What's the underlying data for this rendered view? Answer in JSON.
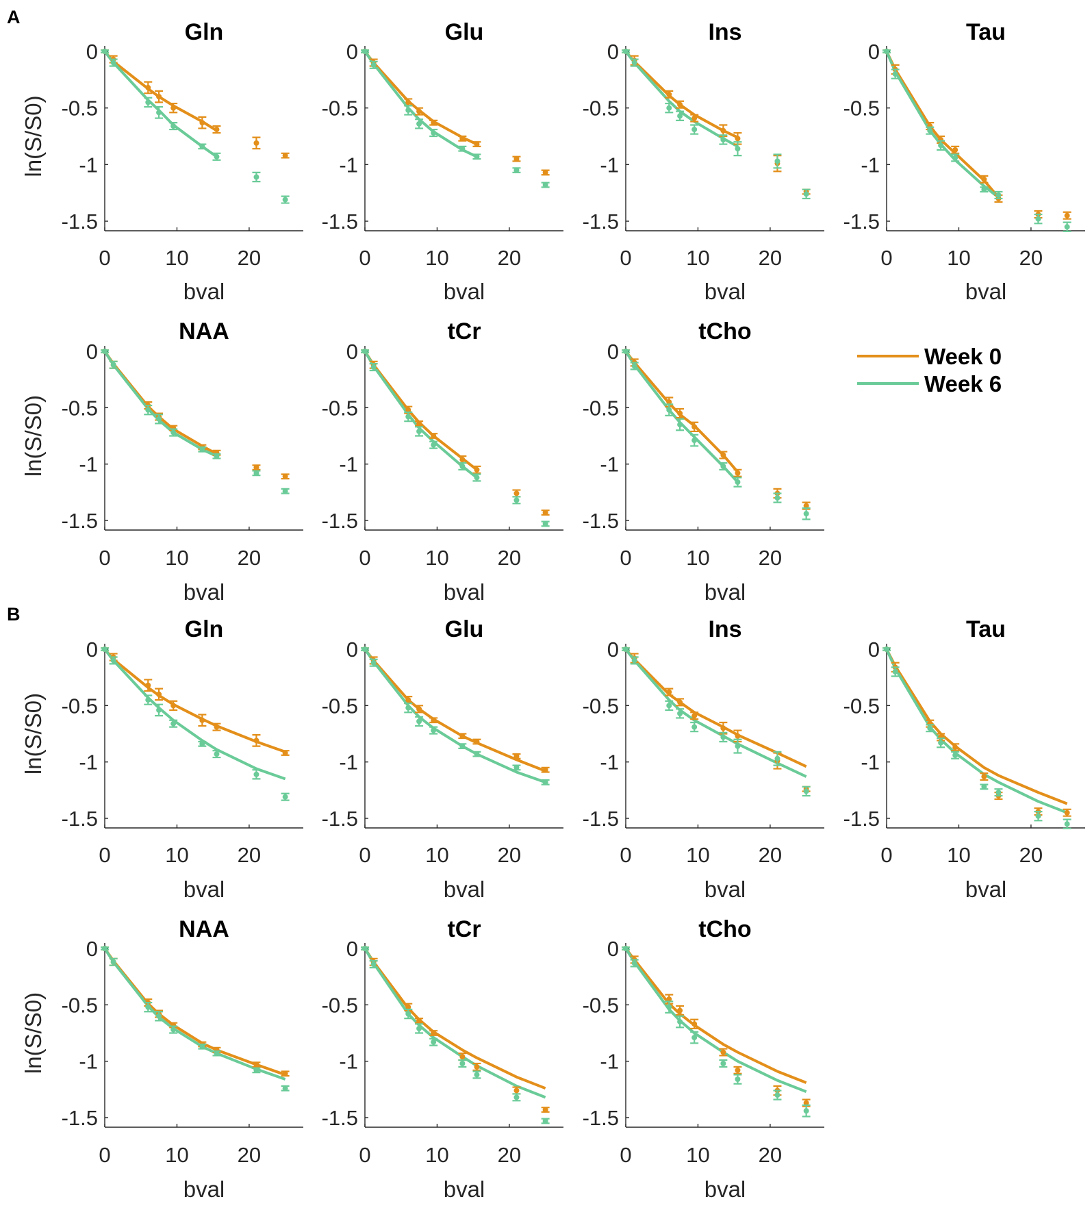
{
  "figure": {
    "section_labels": [
      "A",
      "B"
    ],
    "legend": {
      "entries": [
        {
          "label": "Week 0",
          "color": "#E38F1A"
        },
        {
          "label": "Week 6",
          "color": "#6ACB98"
        }
      ]
    }
  },
  "chart_data": {
    "type": "line",
    "xlabel": "bval",
    "ylabel": "ln(S/S0)",
    "xlim": [
      0,
      27.5
    ],
    "ylim": [
      -1.6,
      0.05
    ],
    "x_ticks": [
      0,
      10,
      20
    ],
    "y_ticks": [
      0,
      -0.5,
      -1,
      -1.5
    ],
    "y_tick_labels": [
      "0",
      "-0.5",
      "-1",
      "-1.5"
    ],
    "b_values": [
      0,
      1.2,
      6,
      7.5,
      9.5,
      13.5,
      15.5,
      21,
      25
    ],
    "series_names": [
      "Week 0",
      "Week 6"
    ],
    "metabolites": [
      {
        "name": "Gln",
        "week0": [
          0,
          -0.07,
          -0.32,
          -0.4,
          -0.5,
          -0.63,
          -0.69,
          -0.81,
          -0.92
        ],
        "week0_err": [
          0.01,
          0.03,
          0.05,
          0.05,
          0.04,
          0.05,
          0.03,
          0.05,
          0.02
        ],
        "week6": [
          0,
          -0.1,
          -0.45,
          -0.54,
          -0.66,
          -0.84,
          -0.93,
          -1.11,
          -1.31
        ],
        "week6_err": [
          0.01,
          0.03,
          0.04,
          0.05,
          0.03,
          0.02,
          0.03,
          0.04,
          0.03
        ],
        "fitA_week0": [
          0,
          -0.09,
          -0.33,
          -0.4,
          -0.48,
          -0.62,
          -0.7
        ],
        "fitA_week6": [
          0,
          -0.1,
          -0.43,
          -0.52,
          -0.65,
          -0.84,
          -0.93
        ],
        "fitB_week0": [
          0,
          -0.09,
          -0.34,
          -0.41,
          -0.49,
          -0.62,
          -0.68,
          -0.82,
          -0.91
        ],
        "fitB_week6": [
          0,
          -0.1,
          -0.43,
          -0.52,
          -0.63,
          -0.81,
          -0.89,
          -1.06,
          -1.15
        ]
      },
      {
        "name": "Glu",
        "week0": [
          0,
          -0.1,
          -0.45,
          -0.53,
          -0.63,
          -0.77,
          -0.82,
          -0.95,
          -1.07
        ],
        "week0_err": [
          0.01,
          0.03,
          0.03,
          0.03,
          0.02,
          0.02,
          0.02,
          0.02,
          0.02
        ],
        "week6": [
          0,
          -0.12,
          -0.52,
          -0.64,
          -0.72,
          -0.86,
          -0.93,
          -1.05,
          -1.18
        ],
        "week6_err": [
          0.01,
          0.03,
          0.04,
          0.04,
          0.03,
          0.02,
          0.02,
          0.02,
          0.02
        ],
        "fitA_week0": [
          0,
          -0.1,
          -0.44,
          -0.52,
          -0.62,
          -0.76,
          -0.82
        ],
        "fitA_week6": [
          0,
          -0.11,
          -0.5,
          -0.6,
          -0.71,
          -0.87,
          -0.93
        ],
        "fitB_week0": [
          0,
          -0.1,
          -0.45,
          -0.53,
          -0.62,
          -0.77,
          -0.83,
          -0.98,
          -1.08
        ],
        "fitB_week6": [
          0,
          -0.11,
          -0.5,
          -0.6,
          -0.7,
          -0.86,
          -0.93,
          -1.09,
          -1.18
        ]
      },
      {
        "name": "Ins",
        "week0": [
          0,
          -0.08,
          -0.38,
          -0.47,
          -0.59,
          -0.7,
          -0.77,
          -0.99,
          -1.24
        ],
        "week0_err": [
          0.01,
          0.04,
          0.03,
          0.03,
          0.03,
          0.05,
          0.05,
          0.07,
          0.02
        ],
        "week6": [
          0,
          -0.1,
          -0.5,
          -0.57,
          -0.69,
          -0.78,
          -0.86,
          -0.97,
          -1.26
        ],
        "week6_err": [
          0.01,
          0.03,
          0.04,
          0.04,
          0.04,
          0.04,
          0.06,
          0.06,
          0.04
        ],
        "fitA_week0": [
          0,
          -0.09,
          -0.39,
          -0.47,
          -0.56,
          -0.7,
          -0.76
        ],
        "fitA_week6": [
          0,
          -0.1,
          -0.44,
          -0.53,
          -0.62,
          -0.77,
          -0.84
        ],
        "fitB_week0": [
          0,
          -0.09,
          -0.4,
          -0.47,
          -0.56,
          -0.69,
          -0.76,
          -0.92,
          -1.04
        ],
        "fitB_week6": [
          0,
          -0.1,
          -0.45,
          -0.54,
          -0.63,
          -0.77,
          -0.84,
          -1.01,
          -1.13
        ]
      },
      {
        "name": "Tau",
        "week0": [
          0,
          -0.16,
          -0.66,
          -0.78,
          -0.87,
          -1.13,
          -1.3,
          -1.44,
          -1.45
        ],
        "week0_err": [
          0.01,
          0.04,
          0.03,
          0.03,
          0.03,
          0.03,
          0.03,
          0.03,
          0.03
        ],
        "week6": [
          0,
          -0.2,
          -0.7,
          -0.83,
          -0.94,
          -1.22,
          -1.27,
          -1.48,
          -1.55
        ],
        "week6_err": [
          0.01,
          0.04,
          0.03,
          0.04,
          0.03,
          0.02,
          0.03,
          0.04,
          0.04
        ],
        "fitA_week0": [
          0,
          -0.16,
          -0.66,
          -0.78,
          -0.9,
          -1.14,
          -1.29
        ],
        "fitA_week6": [
          0,
          -0.18,
          -0.7,
          -0.82,
          -0.96,
          -1.19,
          -1.29
        ],
        "fitB_week0": [
          0,
          -0.15,
          -0.64,
          -0.75,
          -0.86,
          -1.05,
          -1.12,
          -1.27,
          -1.37
        ],
        "fitB_week6": [
          0,
          -0.17,
          -0.69,
          -0.8,
          -0.92,
          -1.11,
          -1.18,
          -1.35,
          -1.45
        ]
      },
      {
        "name": "NAA",
        "week0": [
          0,
          -0.12,
          -0.48,
          -0.58,
          -0.68,
          -0.85,
          -0.9,
          -1.03,
          -1.11
        ],
        "week0_err": [
          0.01,
          0.03,
          0.03,
          0.03,
          0.02,
          0.02,
          0.02,
          0.02,
          0.02
        ],
        "week6": [
          0,
          -0.12,
          -0.52,
          -0.6,
          -0.72,
          -0.87,
          -0.93,
          -1.08,
          -1.24
        ],
        "week6_err": [
          0.01,
          0.03,
          0.04,
          0.04,
          0.03,
          0.02,
          0.02,
          0.02,
          0.02
        ],
        "fitA_week0": [
          0,
          -0.11,
          -0.49,
          -0.58,
          -0.69,
          -0.84,
          -0.91
        ],
        "fitA_week6": [
          0,
          -0.12,
          -0.51,
          -0.61,
          -0.72,
          -0.87,
          -0.93
        ],
        "fitB_week0": [
          0,
          -0.11,
          -0.49,
          -0.58,
          -0.68,
          -0.84,
          -0.9,
          -1.03,
          -1.12
        ],
        "fitB_week6": [
          0,
          -0.12,
          -0.51,
          -0.61,
          -0.71,
          -0.87,
          -0.93,
          -1.07,
          -1.16
        ]
      },
      {
        "name": "tCr",
        "week0": [
          0,
          -0.12,
          -0.52,
          -0.64,
          -0.75,
          -0.96,
          -1.05,
          -1.26,
          -1.43
        ],
        "week0_err": [
          0.01,
          0.03,
          0.03,
          0.02,
          0.02,
          0.03,
          0.03,
          0.03,
          0.02
        ],
        "week6": [
          0,
          -0.14,
          -0.58,
          -0.71,
          -0.83,
          -1.02,
          -1.12,
          -1.32,
          -1.53
        ],
        "week6_err": [
          0.01,
          0.03,
          0.04,
          0.04,
          0.03,
          0.03,
          0.03,
          0.03,
          0.02
        ],
        "fitA_week0": [
          0,
          -0.12,
          -0.52,
          -0.63,
          -0.75,
          -0.95,
          -1.05
        ],
        "fitA_week6": [
          0,
          -0.13,
          -0.56,
          -0.68,
          -0.8,
          -1.02,
          -1.12
        ],
        "fitB_week0": [
          0,
          -0.12,
          -0.53,
          -0.63,
          -0.74,
          -0.9,
          -0.97,
          -1.14,
          -1.24
        ],
        "fitB_week6": [
          0,
          -0.13,
          -0.58,
          -0.68,
          -0.79,
          -0.96,
          -1.04,
          -1.22,
          -1.32
        ]
      },
      {
        "name": "tCho",
        "week0": [
          0,
          -0.1,
          -0.45,
          -0.55,
          -0.67,
          -0.92,
          -1.08,
          -1.26,
          -1.37
        ],
        "week0_err": [
          0.01,
          0.03,
          0.04,
          0.04,
          0.04,
          0.03,
          0.03,
          0.04,
          0.03
        ],
        "week6": [
          0,
          -0.13,
          -0.52,
          -0.65,
          -0.79,
          -1.02,
          -1.16,
          -1.3,
          -1.44
        ],
        "week6_err": [
          0.01,
          0.03,
          0.05,
          0.05,
          0.05,
          0.03,
          0.04,
          0.04,
          0.05
        ],
        "fitA_week0": [
          0,
          -0.1,
          -0.46,
          -0.56,
          -0.66,
          -0.92,
          -1.07
        ],
        "fitA_week6": [
          0,
          -0.12,
          -0.52,
          -0.63,
          -0.76,
          -1.02,
          -1.16
        ],
        "fitB_week0": [
          0,
          -0.1,
          -0.49,
          -0.58,
          -0.68,
          -0.85,
          -0.92,
          -1.09,
          -1.19
        ],
        "fitB_week6": [
          0,
          -0.12,
          -0.54,
          -0.64,
          -0.75,
          -0.92,
          -1.0,
          -1.17,
          -1.27
        ]
      }
    ]
  }
}
